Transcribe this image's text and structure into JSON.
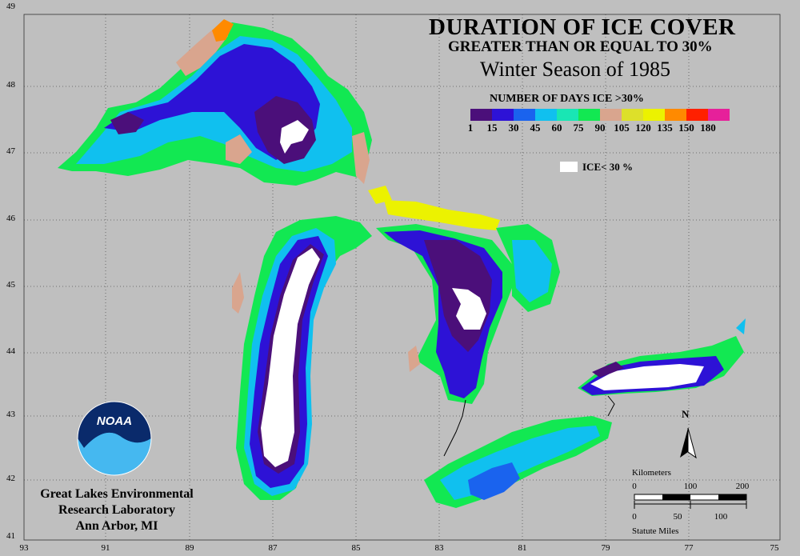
{
  "title": {
    "line1": "DURATION OF ICE COVER",
    "line2": "GREATER THAN OR EQUAL TO 30%",
    "line3": "Winter Season of 1985"
  },
  "legend": {
    "title": "NUMBER OF DAYS ICE >30%",
    "ticks": [
      "1",
      "15",
      "30",
      "45",
      "60",
      "75",
      "90",
      "105",
      "120",
      "135",
      "150",
      "180"
    ],
    "colors": [
      "#4b0f7a",
      "#2d12d6",
      "#1a63ee",
      "#10c0ef",
      "#19e6b4",
      "#12e852",
      "#d9a58e",
      "#dde02a",
      "#ecf200",
      "#ff8a00",
      "#ff2000",
      "#e6209a"
    ],
    "ice_label": "ICE< 30 %",
    "ice_color": "#ffffff"
  },
  "axes": {
    "latitudes": [
      "49",
      "48",
      "47",
      "46",
      "45",
      "44",
      "43",
      "42",
      "41"
    ],
    "longitudes": [
      "93",
      "91",
      "89",
      "87",
      "85",
      "83",
      "81",
      "79",
      "77",
      "75"
    ]
  },
  "organization": {
    "line1": "Great Lakes Environmental",
    "line2": "Research Laboratory",
    "line3": "Ann Arbor, MI",
    "logo_text": "NOAA"
  },
  "scale": {
    "km_label": "Kilometers",
    "km_ticks": [
      "0",
      "100",
      "200"
    ],
    "mi_label": "Statute Miles",
    "mi_ticks": [
      "0",
      "50",
      "100"
    ]
  },
  "north_label": "N",
  "map_background": "#bfbfbf"
}
